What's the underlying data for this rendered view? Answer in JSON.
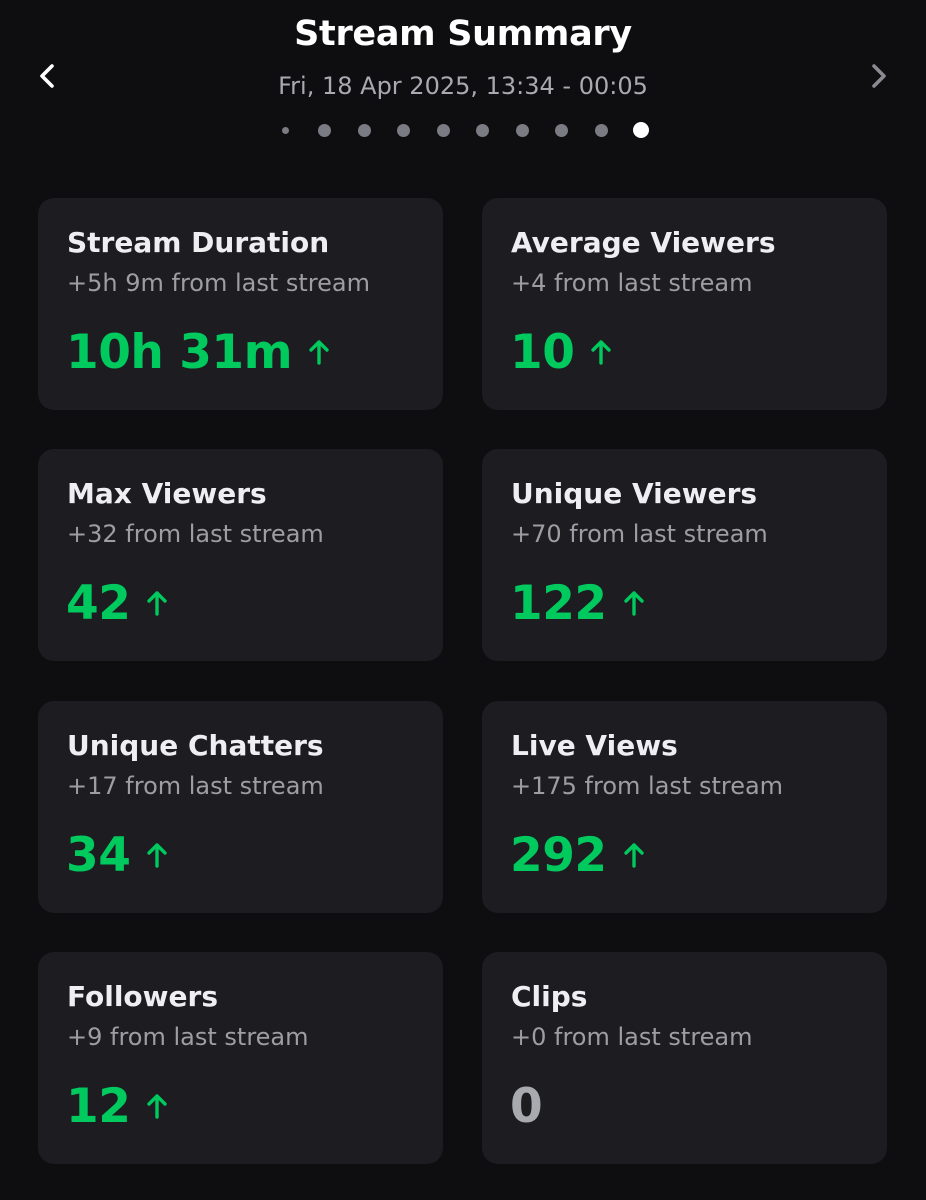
{
  "header": {
    "title": "Stream Summary",
    "subtitle": "Fri, 18 Apr 2025, 13:34 - 00:05",
    "prev_icon": "chevron-left-icon",
    "next_icon": "chevron-right-icon",
    "page_count": 10,
    "active_page": 10
  },
  "colors": {
    "background": "#0e0e10",
    "card": "#1c1c21",
    "positive": "#00c95e",
    "neutral": "#a9a9b0"
  },
  "cards": [
    {
      "label": "Stream Duration",
      "delta": "+5h 9m from last stream",
      "value": "10h 31m",
      "trend": "up"
    },
    {
      "label": "Average Viewers",
      "delta": "+4 from last stream",
      "value": "10",
      "trend": "up"
    },
    {
      "label": "Max Viewers",
      "delta": "+32 from last stream",
      "value": "42",
      "trend": "up"
    },
    {
      "label": "Unique Viewers",
      "delta": "+70 from last stream",
      "value": "122",
      "trend": "up"
    },
    {
      "label": "Unique Chatters",
      "delta": "+17 from last stream",
      "value": "34",
      "trend": "up"
    },
    {
      "label": "Live Views",
      "delta": "+175 from last stream",
      "value": "292",
      "trend": "up"
    },
    {
      "label": "Followers",
      "delta": "+9 from last stream",
      "value": "12",
      "trend": "up"
    },
    {
      "label": "Clips",
      "delta": "+0 from last stream",
      "value": "0",
      "trend": "none"
    }
  ]
}
